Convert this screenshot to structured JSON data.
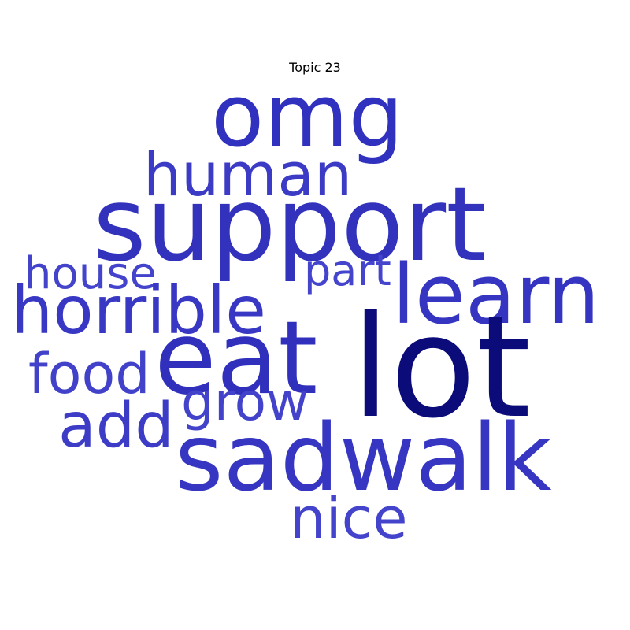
{
  "title": "Topic 23",
  "words": {
    "omg": {
      "text": "omg",
      "color": "#3131bf"
    },
    "human": {
      "text": "human",
      "color": "#3b3bc6"
    },
    "support": {
      "text": "support",
      "color": "#3232bd"
    },
    "house": {
      "text": "house",
      "color": "#4343cc"
    },
    "part": {
      "text": "part",
      "color": "#4444cc"
    },
    "learn": {
      "text": "learn",
      "color": "#3535c1"
    },
    "horrible": {
      "text": "horrible",
      "color": "#3838c4"
    },
    "eat": {
      "text": "eat",
      "color": "#3030bd"
    },
    "lot": {
      "text": "lot",
      "color": "#0b0b7a"
    },
    "food": {
      "text": "food",
      "color": "#4141ca"
    },
    "grow": {
      "text": "grow",
      "color": "#4242cb"
    },
    "add": {
      "text": "add",
      "color": "#3c3cc7"
    },
    "sadwalk": {
      "text": "sadwalk",
      "color": "#3636c3"
    },
    "nice": {
      "text": "nice",
      "color": "#4343cc"
    }
  }
}
